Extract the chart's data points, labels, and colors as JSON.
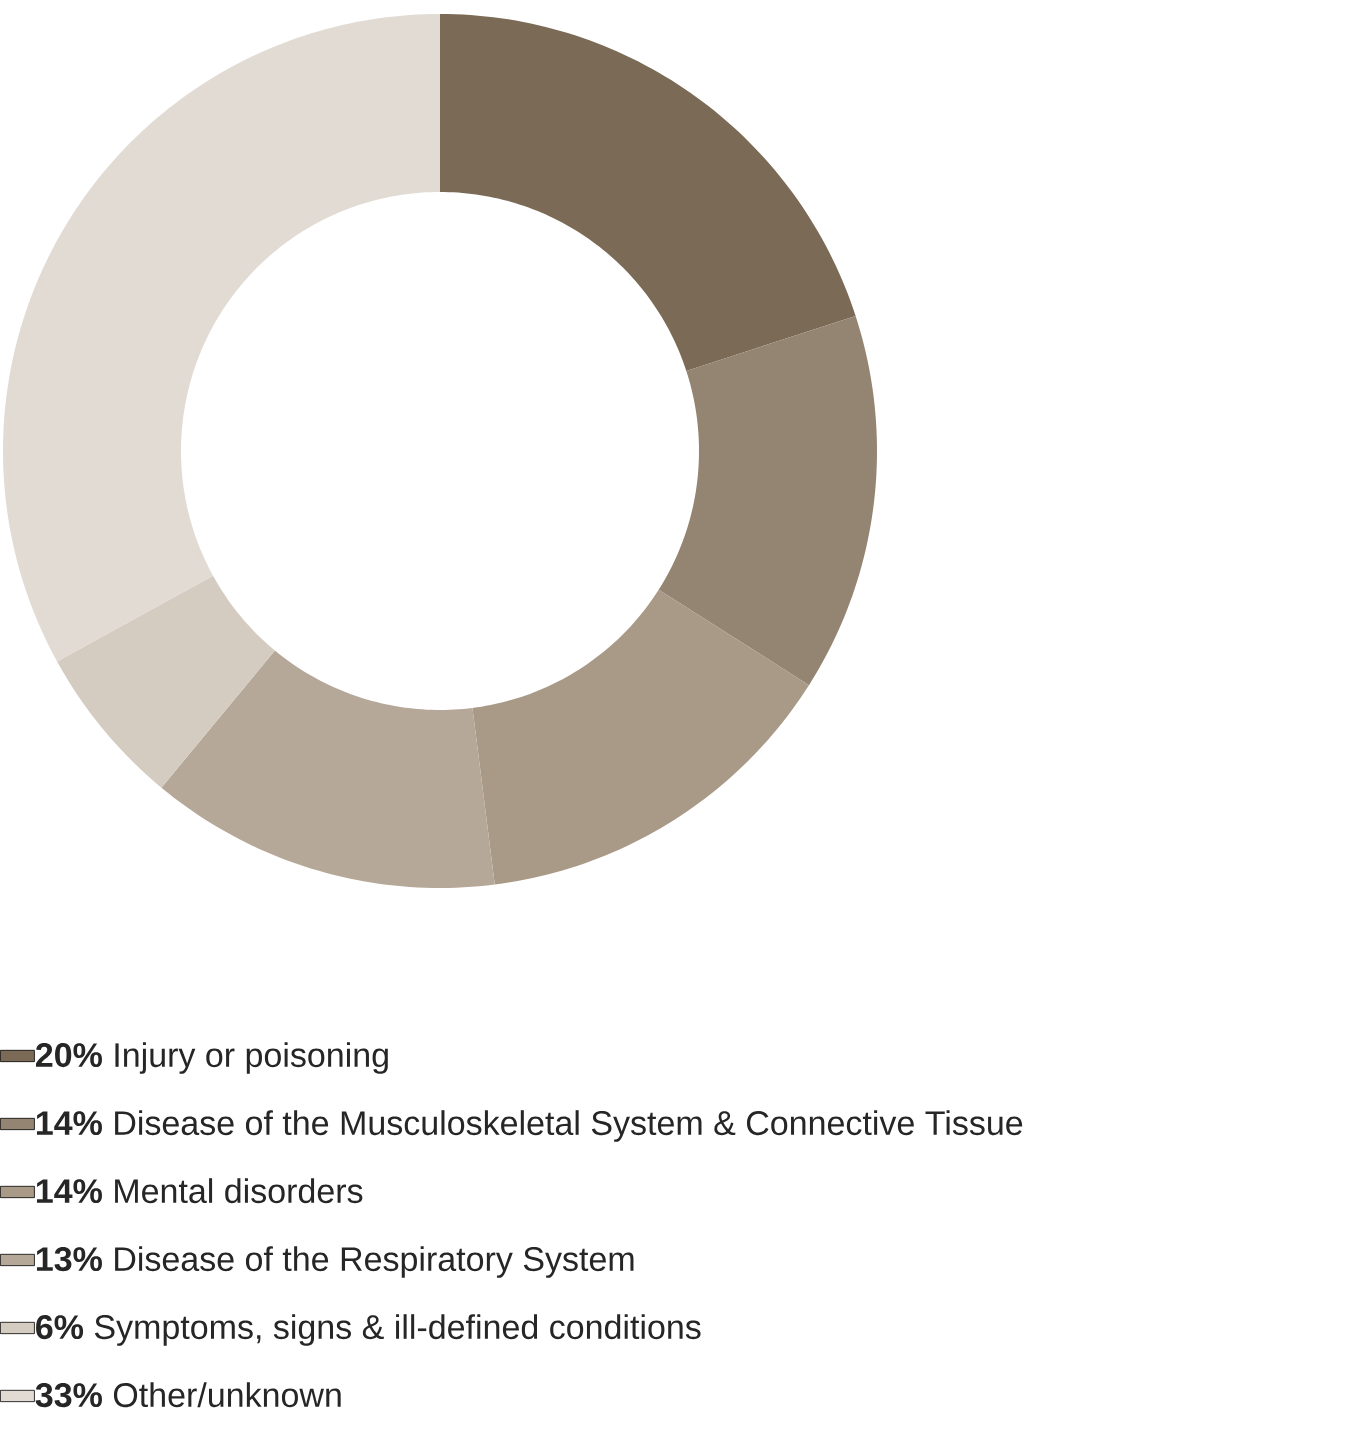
{
  "chart_data": {
    "type": "donut",
    "categories": [
      "Injury or poisoning",
      "Disease of the Musculoskeletal System & Connective Tissue",
      "Mental disorders",
      "Disease of the Respiratory System",
      "Symptoms, signs & ill-defined conditions",
      "Other/unknown"
    ],
    "values": [
      20,
      14,
      14,
      13,
      6,
      33
    ],
    "value_labels": [
      "20%",
      "14%",
      "14%",
      "13%",
      "6%",
      "33%"
    ],
    "colors": [
      "#7b6a55",
      "#948472",
      "#a89a87",
      "#b6a898",
      "#d4ccc1",
      "#e1dbd3"
    ],
    "legend": "bottom"
  }
}
